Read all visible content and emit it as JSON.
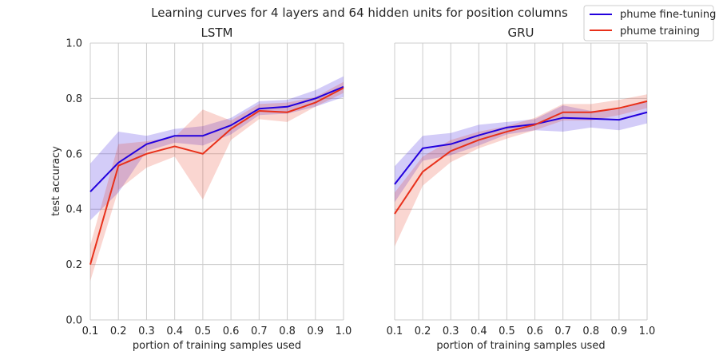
{
  "chart_data": {
    "type": "line",
    "title": "Learning curves for 4 layers and 64 hidden units for position columns",
    "xlabel": "portion of training samples used",
    "ylabel": "test accuracy",
    "xlim": [
      0.1,
      1.0
    ],
    "ylim": [
      0.0,
      1.0
    ],
    "x_ticks": [
      "0.1",
      "0.2",
      "0.3",
      "0.4",
      "0.5",
      "0.6",
      "0.7",
      "0.8",
      "0.9",
      "1.0"
    ],
    "y_ticks": [
      "0.0",
      "0.2",
      "0.4",
      "0.6",
      "0.8",
      "1.0"
    ],
    "grid": true,
    "legend_position": "top-right",
    "x": [
      0.1,
      0.2,
      0.3,
      0.4,
      0.5,
      0.6,
      0.7,
      0.8,
      0.9,
      1.0
    ],
    "colors": {
      "phume fine-tuning": "#2200dd",
      "phume training": "#e8301a"
    },
    "legend": [
      "phume fine-tuning",
      "phume training"
    ],
    "panels": [
      {
        "title": "LSTM",
        "series": [
          {
            "name": "phume fine-tuning",
            "values": [
              0.463,
              0.568,
              0.635,
              0.665,
              0.665,
              0.703,
              0.763,
              0.77,
              0.8,
              0.842
            ],
            "lower": [
              0.36,
              0.46,
              0.61,
              0.64,
              0.63,
              0.67,
              0.74,
              0.745,
              0.77,
              0.805
            ],
            "upper": [
              0.565,
              0.68,
              0.665,
              0.69,
              0.7,
              0.73,
              0.79,
              0.795,
              0.83,
              0.88
            ]
          },
          {
            "name": "phume training",
            "values": [
              0.2,
              0.557,
              0.6,
              0.627,
              0.6,
              0.69,
              0.755,
              0.75,
              0.785,
              0.838
            ],
            "lower": [
              0.14,
              0.47,
              0.55,
              0.59,
              0.435,
              0.65,
              0.725,
              0.715,
              0.77,
              0.82
            ],
            "upper": [
              0.27,
              0.635,
              0.645,
              0.66,
              0.76,
              0.72,
              0.78,
              0.785,
              0.805,
              0.86
            ]
          }
        ]
      },
      {
        "title": "GRU",
        "series": [
          {
            "name": "phume fine-tuning",
            "values": [
              0.49,
              0.62,
              0.635,
              0.667,
              0.695,
              0.707,
              0.73,
              0.727,
              0.723,
              0.75
            ],
            "lower": [
              0.425,
              0.575,
              0.595,
              0.63,
              0.67,
              0.685,
              0.68,
              0.695,
              0.685,
              0.71
            ],
            "upper": [
              0.555,
              0.665,
              0.675,
              0.705,
              0.715,
              0.725,
              0.775,
              0.755,
              0.76,
              0.79
            ]
          },
          {
            "name": "phume training",
            "values": [
              0.383,
              0.535,
              0.61,
              0.65,
              0.68,
              0.705,
              0.75,
              0.75,
              0.765,
              0.79
            ],
            "lower": [
              0.265,
              0.485,
              0.57,
              0.62,
              0.655,
              0.685,
              0.72,
              0.72,
              0.74,
              0.765
            ],
            "upper": [
              0.46,
              0.59,
              0.65,
              0.68,
              0.7,
              0.73,
              0.78,
              0.78,
              0.795,
              0.815
            ]
          }
        ]
      }
    ]
  }
}
